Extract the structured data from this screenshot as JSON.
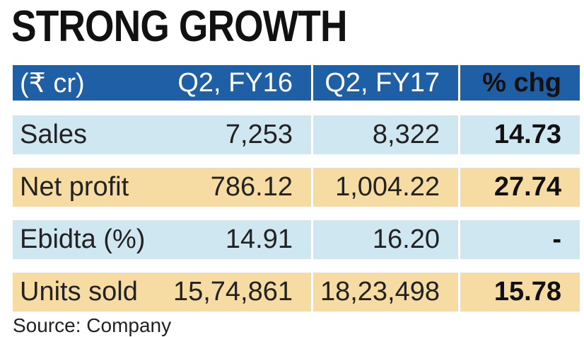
{
  "title": "STRONG GROWTH",
  "table": {
    "header": [
      "(₹ cr)",
      "Q2, FY16",
      "Q2, FY17",
      "% chg"
    ],
    "rows": [
      [
        "Sales",
        "7,253",
        "8,322",
        "14.73"
      ],
      [
        "Net profit",
        "786.12",
        "1,004.22",
        "27.74"
      ],
      [
        "Ebidta (%)",
        "14.91",
        "16.20",
        "-"
      ],
      [
        "Units sold",
        "15,74,861",
        "18,23,498",
        "15.78"
      ]
    ]
  },
  "source": "Source: Company"
}
